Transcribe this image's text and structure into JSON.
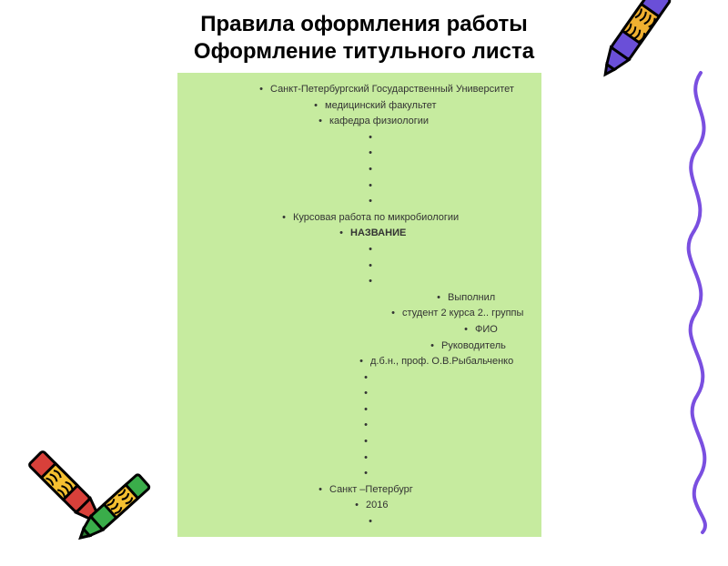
{
  "title_line1": "Правила оформления работы",
  "title_line2": "Оформление титульного листа",
  "panel": {
    "bg": "#c6eb9f",
    "text_color": "#333333",
    "fontsize": 11,
    "lines": [
      {
        "bullet_indent": 80,
        "text": "Санкт-Петербургский Государственный Университет",
        "bold": false
      },
      {
        "bullet_indent": 140,
        "text": "медицинский факультет",
        "bold": false
      },
      {
        "bullet_indent": 145,
        "text": "кафедра физиологии",
        "bold": false
      },
      {
        "bullet_indent": 200,
        "text": "",
        "bold": false
      },
      {
        "bullet_indent": 200,
        "text": "",
        "bold": false
      },
      {
        "bullet_indent": 200,
        "text": "",
        "bold": false
      },
      {
        "bullet_indent": 200,
        "text": "",
        "bold": false
      },
      {
        "bullet_indent": 200,
        "text": "",
        "bold": false
      },
      {
        "bullet_indent": 105,
        "text": "Курсовая работа по микробиологии",
        "bold": false
      },
      {
        "bullet_indent": 168,
        "text": "НАЗВАНИЕ",
        "bold": true
      },
      {
        "bullet_indent": 200,
        "text": "",
        "bold": false
      },
      {
        "bullet_indent": 200,
        "text": "",
        "bold": false
      },
      {
        "bullet_indent": 200,
        "text": "",
        "bold": false
      },
      {
        "bullet_indent": 275,
        "text": "Выполнил",
        "bold": false
      },
      {
        "bullet_indent": 225,
        "text": "студент 2 курса 2.. группы",
        "bold": false
      },
      {
        "bullet_indent": 305,
        "text": "ФИО",
        "bold": false
      },
      {
        "bullet_indent": 268,
        "text": "Руководитель",
        "bold": false
      },
      {
        "bullet_indent": 190,
        "text": "д.б.н., проф. О.В.Рыбальченко",
        "bold": false
      },
      {
        "bullet_indent": 195,
        "text": "",
        "bold": false
      },
      {
        "bullet_indent": 195,
        "text": "",
        "bold": false
      },
      {
        "bullet_indent": 195,
        "text": "",
        "bold": false
      },
      {
        "bullet_indent": 195,
        "text": "",
        "bold": false
      },
      {
        "bullet_indent": 195,
        "text": "",
        "bold": false
      },
      {
        "bullet_indent": 195,
        "text": "",
        "bold": false
      },
      {
        "bullet_indent": 195,
        "text": "",
        "bold": false
      },
      {
        "bullet_indent": 145,
        "text": "Санкт –Петербург",
        "bold": false
      },
      {
        "bullet_indent": 185,
        "text": "2016",
        "bold": false
      },
      {
        "bullet_indent": 200,
        "text": "",
        "bold": false
      }
    ]
  },
  "decor": {
    "crayon_purple": {
      "body": "#6a4fd8",
      "wrap": "#f0b030",
      "tip": "#4d36b0"
    },
    "crayon_red": {
      "body": "#d8403a",
      "wrap": "#f5c030",
      "tip": "#a8201a"
    },
    "crayon_green": {
      "body": "#3aad4a",
      "wrap": "#f5c030",
      "tip": "#2a7a30"
    },
    "squiggle": {
      "stroke": "#7a4fe0",
      "width": 4
    }
  }
}
